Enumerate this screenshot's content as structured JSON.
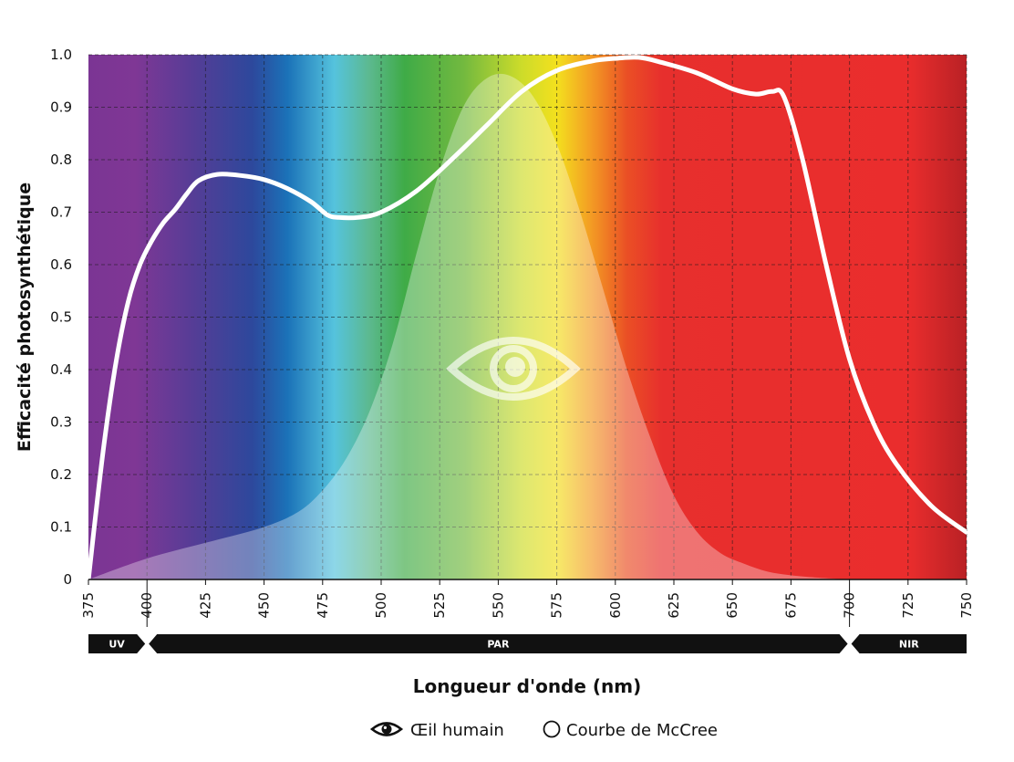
{
  "chart_data": {
    "type": "area",
    "xlabel": "Longueur d'onde (nm)",
    "ylabel": "Efficacité photosynthétique",
    "xlim": [
      375,
      750
    ],
    "ylim": [
      0,
      1.0
    ],
    "x_ticks": [
      "375",
      "400",
      "425",
      "450",
      "475",
      "500",
      "525",
      "550",
      "575",
      "600",
      "625",
      "650",
      "675",
      "700",
      "725",
      "750"
    ],
    "y_ticks": [
      "0",
      "0.1",
      "0.2",
      "0.3",
      "0.4",
      "0.5",
      "0.6",
      "0.7",
      "0.8",
      "0.9",
      "1.0"
    ],
    "grid": true,
    "bands": [
      {
        "label": "UV",
        "start": 375,
        "end": 400
      },
      {
        "label": "PAR",
        "start": 400,
        "end": 700
      },
      {
        "label": "NIR",
        "start": 700,
        "end": 750
      }
    ],
    "spectrum_colors": [
      {
        "wl": 375,
        "color": "#7b3594"
      },
      {
        "wl": 395,
        "color": "#7f3795"
      },
      {
        "wl": 420,
        "color": "#553d96"
      },
      {
        "wl": 445,
        "color": "#2d489c"
      },
      {
        "wl": 460,
        "color": "#1b72b8"
      },
      {
        "wl": 480,
        "color": "#55c3dd"
      },
      {
        "wl": 495,
        "color": "#5cb98f"
      },
      {
        "wl": 510,
        "color": "#3fab47"
      },
      {
        "wl": 535,
        "color": "#72b93f"
      },
      {
        "wl": 560,
        "color": "#cddc2a"
      },
      {
        "wl": 575,
        "color": "#f3e01e"
      },
      {
        "wl": 590,
        "color": "#f39a24"
      },
      {
        "wl": 605,
        "color": "#ea4f25"
      },
      {
        "wl": 620,
        "color": "#e72f2d"
      },
      {
        "wl": 725,
        "color": "#ea2d2d"
      },
      {
        "wl": 750,
        "color": "#b92125"
      }
    ],
    "series": [
      {
        "name": "Courbe de McCree",
        "color": "#ffffff",
        "x": [
          375,
          378,
          382,
          387,
          392,
          397,
          402,
          407,
          412,
          417,
          422,
          430,
          440,
          450,
          460,
          470,
          477,
          482,
          490,
          500,
          515,
          530,
          545,
          560,
          575,
          590,
          600,
          610,
          620,
          635,
          650,
          660,
          667,
          672,
          680,
          690,
          700,
          710,
          720,
          735,
          750
        ],
        "y": [
          0.0,
          0.12,
          0.27,
          0.42,
          0.53,
          0.6,
          0.645,
          0.68,
          0.705,
          0.735,
          0.76,
          0.772,
          0.77,
          0.762,
          0.745,
          0.72,
          0.695,
          0.69,
          0.69,
          0.7,
          0.74,
          0.8,
          0.865,
          0.93,
          0.97,
          0.988,
          0.993,
          0.995,
          0.985,
          0.965,
          0.935,
          0.925,
          0.93,
          0.92,
          0.8,
          0.6,
          0.42,
          0.3,
          0.22,
          0.14,
          0.09
        ]
      },
      {
        "name": "Œil humain",
        "color": "#ffffff",
        "x": [
          375,
          400,
          425,
          450,
          465,
          475,
          485,
          495,
          505,
          515,
          525,
          535,
          545,
          555,
          565,
          575,
          585,
          595,
          605,
          615,
          625,
          635,
          645,
          655,
          665,
          675,
          685,
          700
        ],
        "y": [
          0.0,
          0.04,
          0.07,
          0.1,
          0.13,
          0.17,
          0.23,
          0.32,
          0.45,
          0.62,
          0.78,
          0.9,
          0.955,
          0.96,
          0.92,
          0.83,
          0.7,
          0.55,
          0.4,
          0.27,
          0.16,
          0.09,
          0.05,
          0.03,
          0.015,
          0.008,
          0.004,
          0.0
        ]
      }
    ],
    "legend": {
      "placement": "bottom-center",
      "entries": [
        {
          "label": "Œil humain",
          "icon": "eye-icon"
        },
        {
          "label": "Courbe de McCree",
          "icon": "circle-outline-icon"
        }
      ]
    }
  }
}
